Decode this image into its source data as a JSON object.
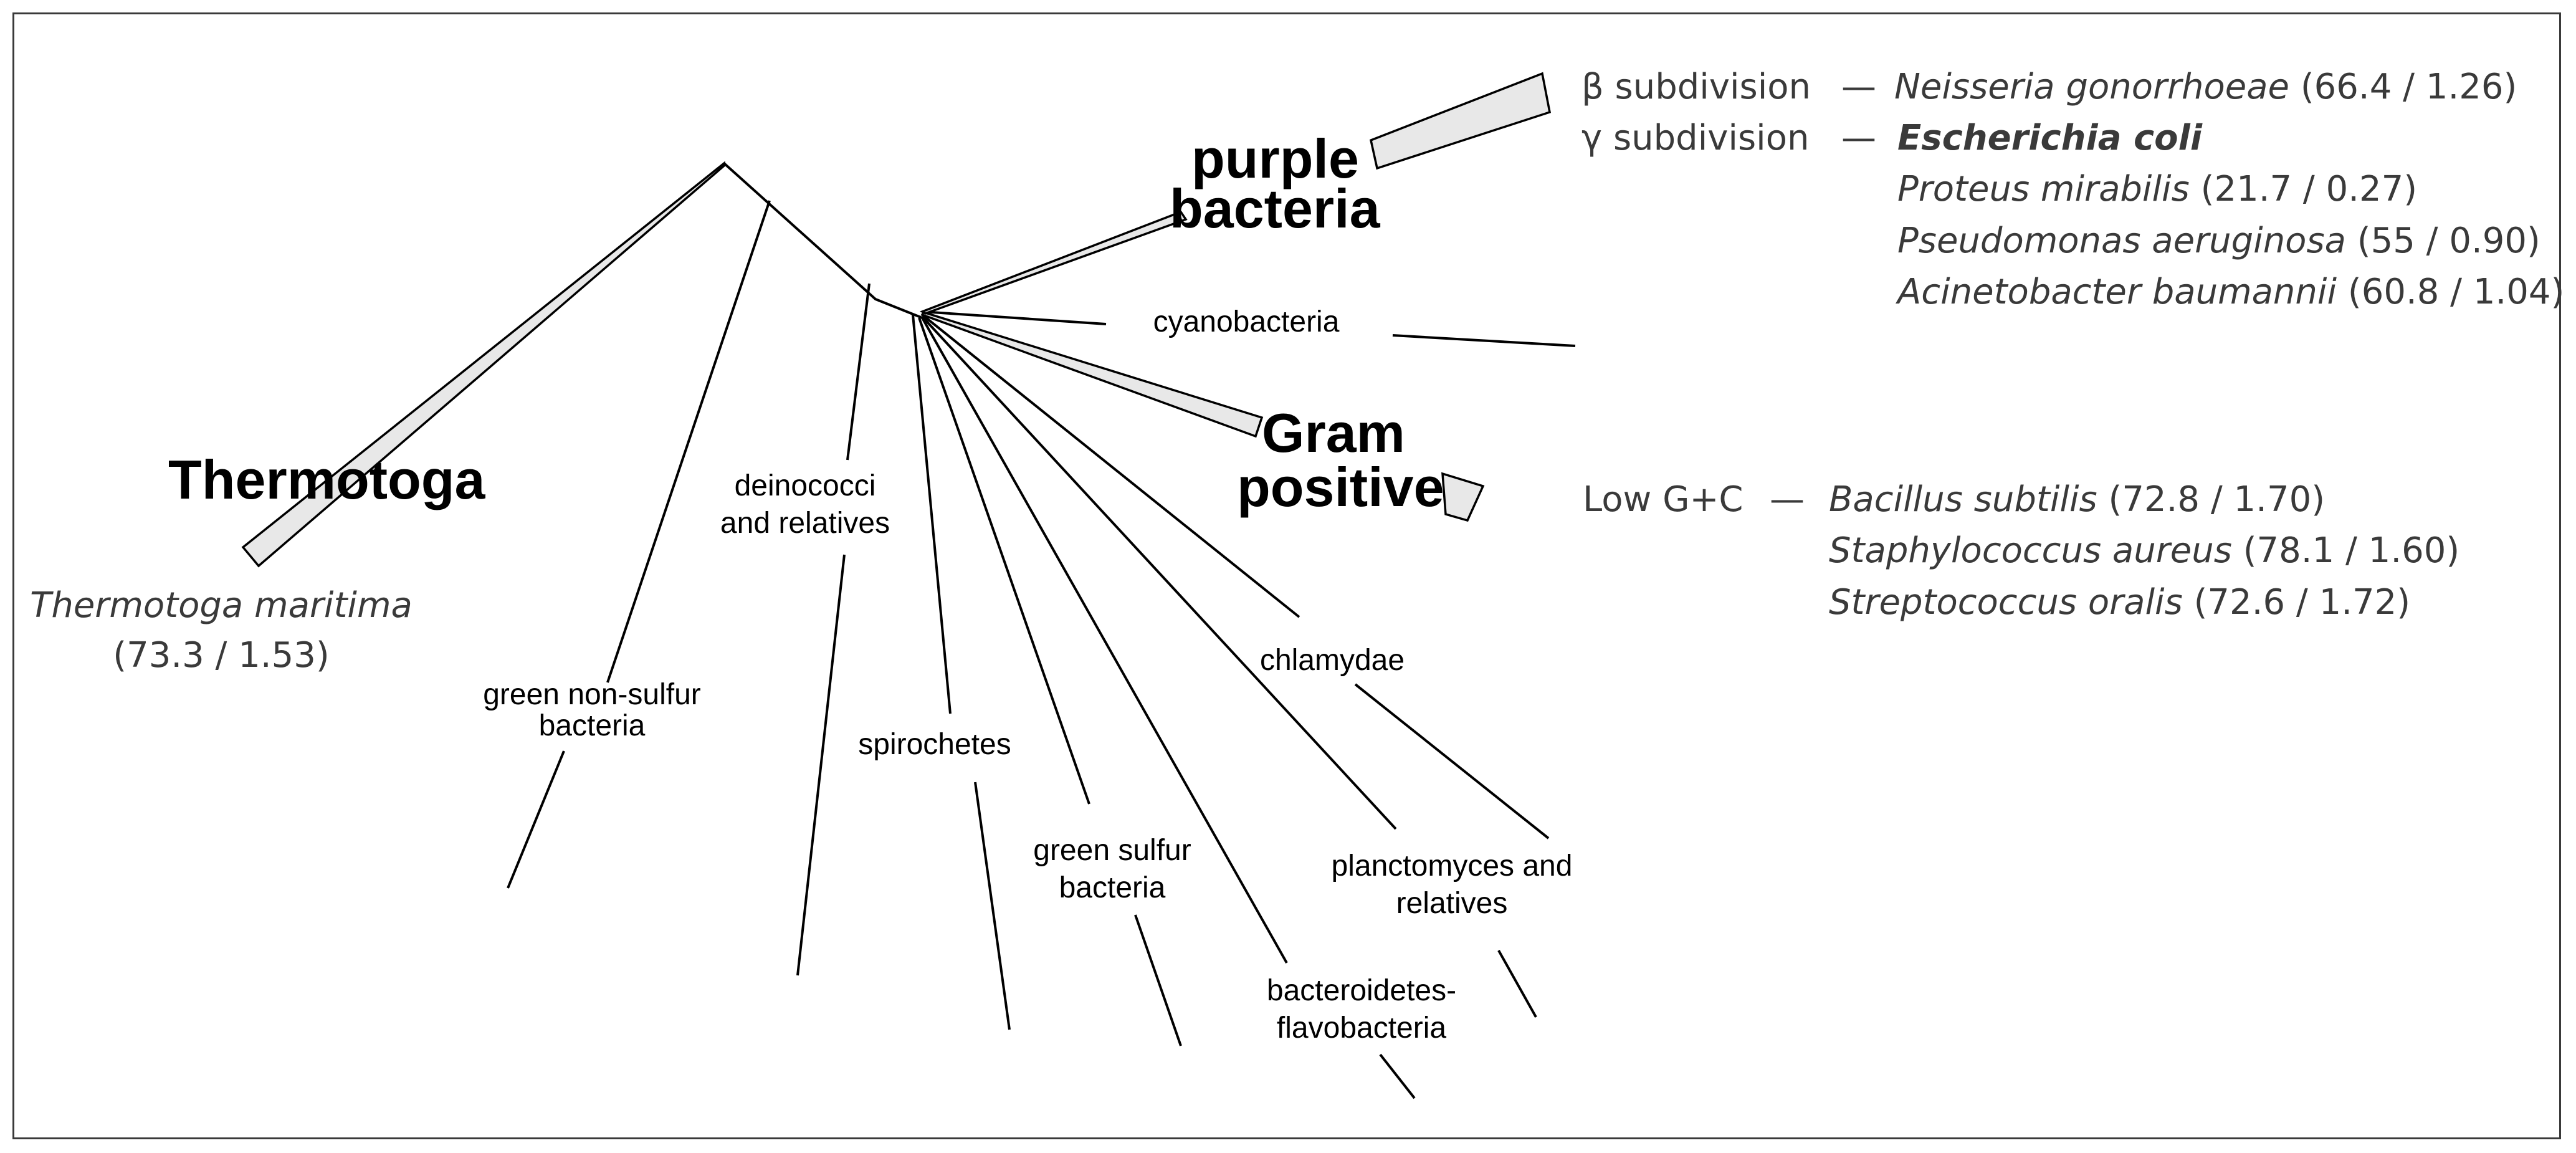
{
  "groups": {
    "thermotoga": "Thermotoga",
    "green_nonsulfur": [
      "green non-sulfur",
      "bacteria"
    ],
    "deinococci": [
      "deinococci",
      "and relatives"
    ],
    "spirochetes": "spirochetes",
    "green_sulfur": [
      "green sulfur",
      "bacteria"
    ],
    "bacteroidetes": [
      "bacteroidetes-",
      "flavobacteria"
    ],
    "planctomyces": [
      "planctomyces and",
      "relatives"
    ],
    "chlamydae": "chlamydae",
    "cyanobacteria": "cyanobacteria",
    "gram_positive": [
      "Gram",
      "positive"
    ],
    "purple_bacteria": [
      "purple",
      "bacteria"
    ]
  },
  "thermotoga_species": {
    "name": "Thermotoga maritima",
    "values": "(73.3 / 1.53)"
  },
  "purple_subdivisions": {
    "beta": {
      "label": "β subdivision",
      "dash": "—",
      "species": [
        {
          "name": "Neisseria gonorrhoeae",
          "values": "(66.4 / 1.26)"
        }
      ]
    },
    "gamma": {
      "label": "γ subdivision",
      "dash": "—",
      "species": [
        {
          "name": "Escherichia coli",
          "values": ""
        },
        {
          "name": "Proteus mirabilis",
          "values": "(21.7 / 0.27)"
        },
        {
          "name": "Pseudomonas aeruginosa",
          "values": "(55 / 0.90)"
        },
        {
          "name": "Acinetobacter baumannii",
          "values": "(60.8 / 1.04)"
        }
      ]
    }
  },
  "gram_positive_subdivision": {
    "label": "Low G+C",
    "dash": "—",
    "species": [
      {
        "name": "Bacillus subtilis",
        "values": "(72.8 / 1.70)"
      },
      {
        "name": "Staphylococcus aureus",
        "values": "(78.1 / 1.60)"
      },
      {
        "name": "Streptococcus oralis",
        "values": "(72.6 / 1.72)"
      }
    ]
  }
}
